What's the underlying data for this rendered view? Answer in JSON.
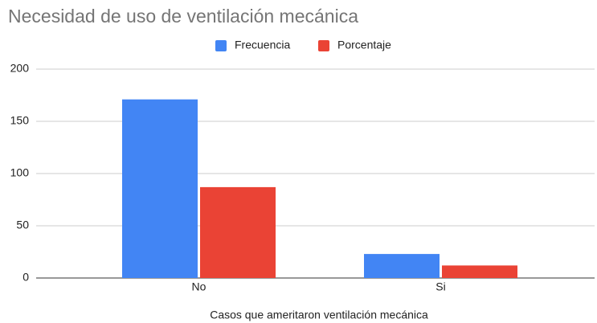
{
  "chart_data": {
    "type": "bar",
    "title": "Necesidad de uso de ventilación mecánica",
    "x_label": "Casos que ameritaron ventilación mecánica",
    "categories": [
      "No",
      "Si"
    ],
    "series": [
      {
        "name": "Frecuencia",
        "color": "#4285f4",
        "values": [
          171,
          23
        ]
      },
      {
        "name": "Porcentaje",
        "color": "#ea4335",
        "values": [
          87,
          12
        ]
      }
    ],
    "ylim": [
      0,
      200
    ],
    "yticks": [
      0,
      50,
      100,
      150,
      200
    ],
    "grid": true,
    "legend": "top"
  }
}
